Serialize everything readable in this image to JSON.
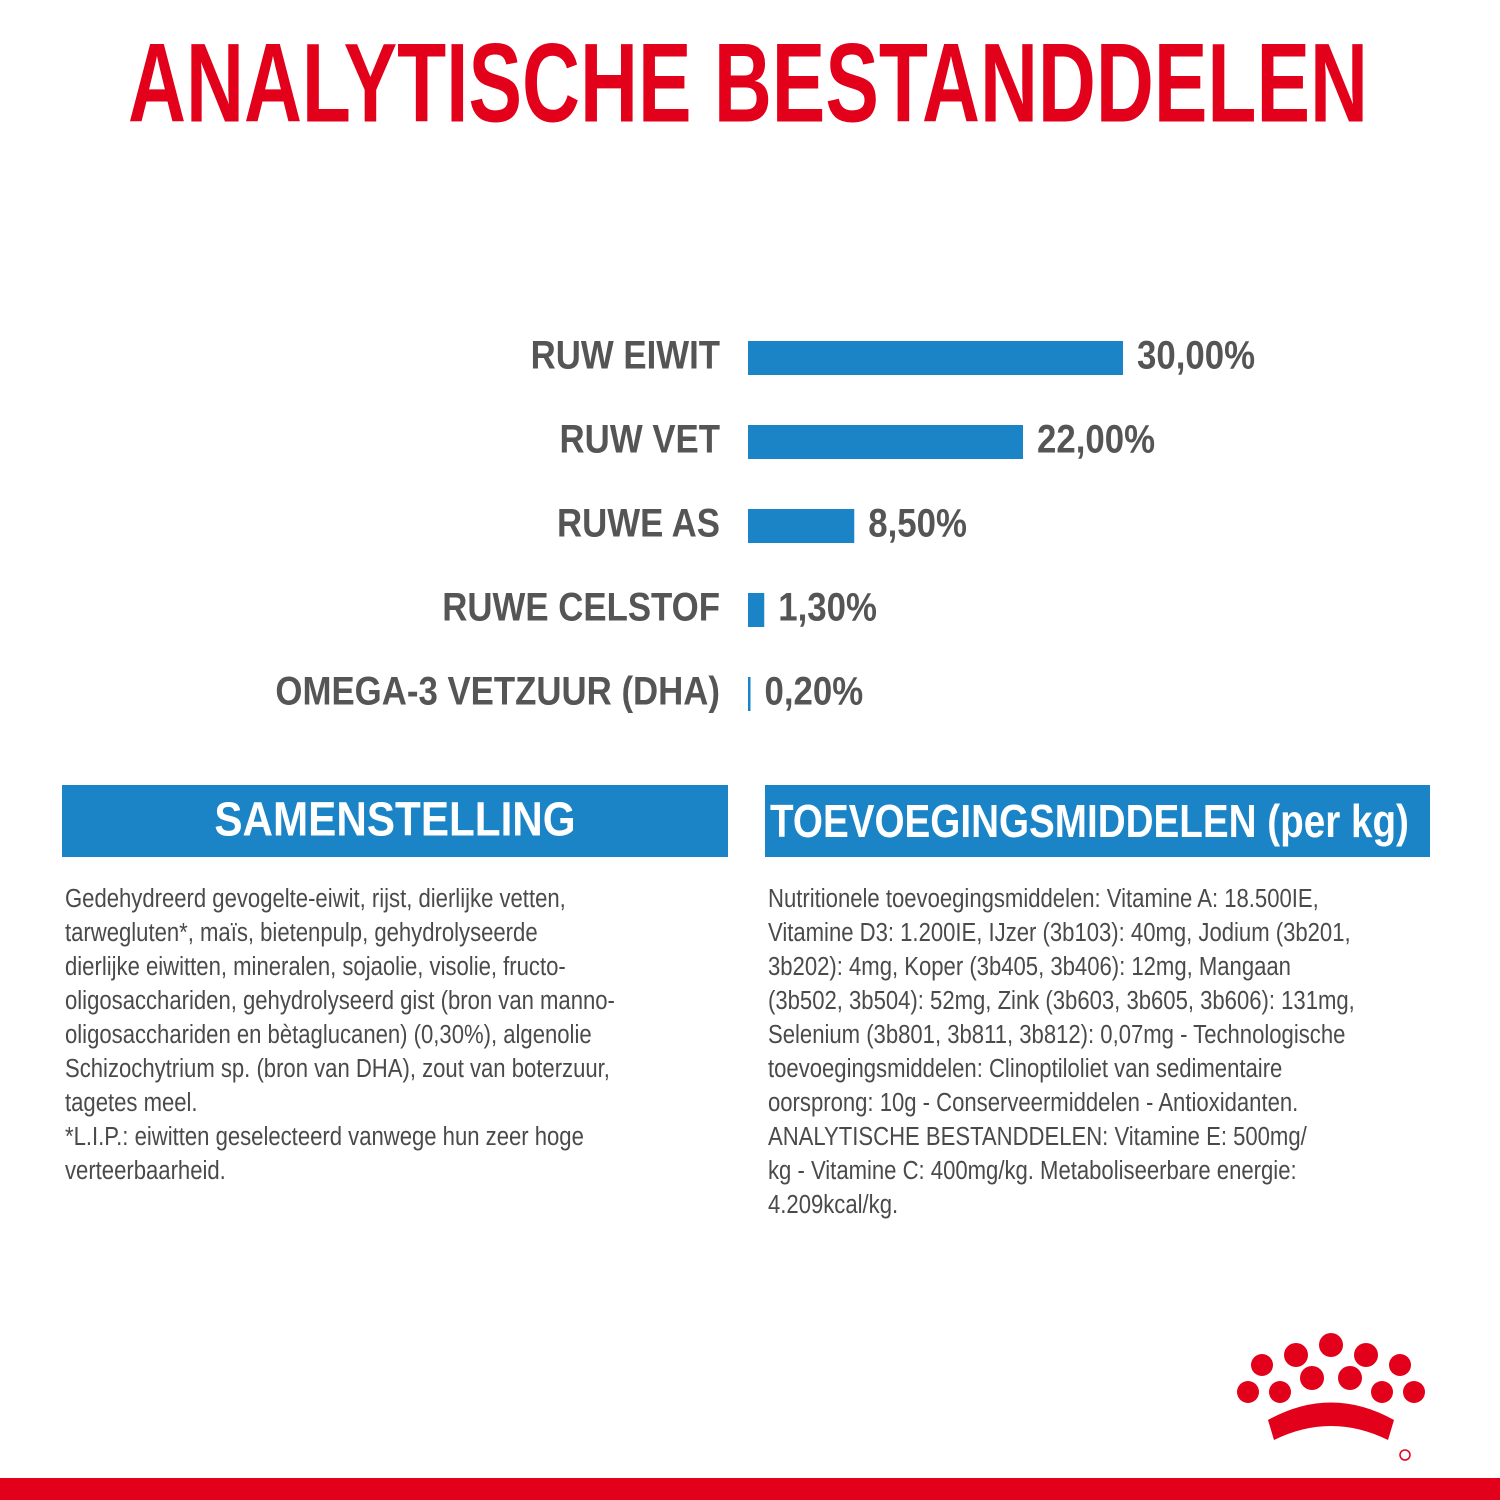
{
  "chart_data": {
    "type": "bar",
    "orientation": "horizontal",
    "title": "ANALYTISCHE BESTANDDELEN",
    "categories": [
      "RUW EIWIT",
      "RUW VET",
      "RUWE AS",
      "RUWE CELSTOF",
      "OMEGA-3 VETZUUR (DHA)"
    ],
    "values": [
      30,
      22,
      8.5,
      1.3,
      0.2
    ],
    "value_labels": [
      "30,00%",
      "22,00%",
      "8,50%",
      "1,30%",
      "0,20%"
    ],
    "color": "#1a84c6"
  },
  "composition": {
    "header": "SAMENSTELLING",
    "lines": [
      "Gedehydreerd gevogelte-eiwit, rijst, dierlijke vetten,",
      "tarwegluten*, maïs, bietenpulp, gehydrolyseerde",
      "dierlijke eiwitten, mineralen, sojaolie, visolie, fructo-",
      "oligosacchariden, gehydrolyseerd gist (bron van manno-",
      "oligosacchariden en bètaglucanen) (0,30%), algenolie",
      "Schizochytrium sp. (bron van DHA), zout van boterzuur,",
      "tagetes meel.",
      "*L.I.P.: eiwitten geselecteerd vanwege hun zeer hoge",
      "verteerbaarheid."
    ]
  },
  "additives": {
    "header": "TOEVOEGINGSMIDDELEN (per kg)",
    "lines": [
      "Nutritionele toevoegingsmiddelen: Vitamine A: 18.500IE,",
      "Vitamine D3: 1.200IE, IJzer (3b103): 40mg, Jodium (3b201,",
      "3b202): 4mg, Koper (3b405, 3b406): 12mg, Mangaan",
      "(3b502, 3b504): 52mg, Zink (3b603, 3b605, 3b606): 131mg,",
      "Selenium (3b801, 3b811, 3b812): 0,07mg - Technologische",
      "toevoegingsmiddelen: Clinoptiloliet van sedimentaire",
      "oorsprong: 10g - Conserveermiddelen - Antioxidanten.",
      "ANALYTISCHE BESTANDDELEN: Vitamine E: 500mg/",
      "kg - Vitamine C: 400mg/kg. Metaboliseerbare energie:",
      "4.209kcal/kg."
    ]
  }
}
